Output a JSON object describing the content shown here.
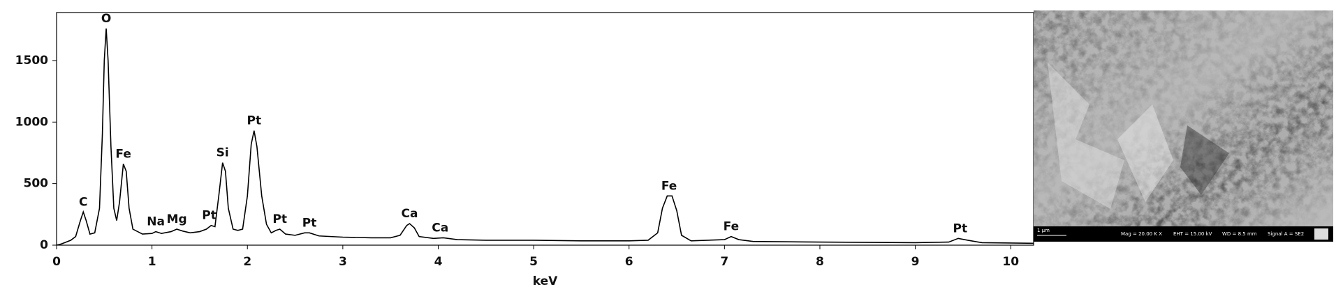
{
  "chart_data": {
    "type": "line",
    "x_label": "keV",
    "x": [
      0,
      0.05,
      0.1,
      0.15,
      0.2,
      0.25,
      0.28,
      0.31,
      0.35,
      0.4,
      0.45,
      0.48,
      0.5,
      0.52,
      0.54,
      0.57,
      0.6,
      0.63,
      0.66,
      0.7,
      0.73,
      0.76,
      0.8,
      0.9,
      1.0,
      1.04,
      1.1,
      1.2,
      1.26,
      1.32,
      1.4,
      1.5,
      1.57,
      1.62,
      1.66,
      1.7,
      1.74,
      1.77,
      1.8,
      1.85,
      1.9,
      1.95,
      2.0,
      2.04,
      2.07,
      2.1,
      2.15,
      2.2,
      2.25,
      2.3,
      2.34,
      2.4,
      2.5,
      2.6,
      2.65,
      2.75,
      3.0,
      3.3,
      3.5,
      3.6,
      3.67,
      3.7,
      3.75,
      3.8,
      3.95,
      4.05,
      4.2,
      4.5,
      5.0,
      5.5,
      6.0,
      6.2,
      6.3,
      6.35,
      6.4,
      6.45,
      6.5,
      6.55,
      6.65,
      7.0,
      7.07,
      7.15,
      7.3,
      8.0,
      9.0,
      9.35,
      9.45,
      9.55,
      9.7,
      10.24
    ],
    "y": [
      0,
      10,
      25,
      40,
      70,
      200,
      270,
      200,
      90,
      100,
      300,
      900,
      1500,
      1760,
      1500,
      800,
      300,
      200,
      350,
      660,
      600,
      300,
      130,
      90,
      95,
      110,
      95,
      110,
      130,
      115,
      100,
      110,
      130,
      160,
      150,
      400,
      670,
      600,
      300,
      130,
      120,
      130,
      400,
      820,
      930,
      800,
      400,
      170,
      100,
      120,
      130,
      90,
      80,
      100,
      100,
      75,
      65,
      60,
      60,
      80,
      160,
      175,
      140,
      70,
      55,
      60,
      45,
      40,
      40,
      35,
      35,
      40,
      100,
      300,
      400,
      400,
      280,
      80,
      35,
      45,
      70,
      45,
      30,
      25,
      20,
      25,
      55,
      40,
      20,
      15
    ],
    "color": "#000000",
    "xlim": [
      0,
      10.24
    ],
    "xticks": [
      0,
      1,
      2,
      3,
      4,
      5,
      6,
      7,
      8,
      9,
      10
    ],
    "ylim": [
      0,
      1890
    ],
    "yticks": [
      0,
      500,
      1000,
      1500
    ],
    "grid": false,
    "annotations": [
      {
        "text": "C",
        "x": 0.28,
        "y": 270
      },
      {
        "text": "O",
        "x": 0.52,
        "y": 1760
      },
      {
        "text": "Fe",
        "x": 0.7,
        "y": 660
      },
      {
        "text": "Na",
        "x": 1.04,
        "y": 110
      },
      {
        "text": "Mg",
        "x": 1.26,
        "y": 130
      },
      {
        "text": "Pt",
        "x": 1.6,
        "y": 160
      },
      {
        "text": "Si",
        "x": 1.74,
        "y": 670
      },
      {
        "text": "Pt",
        "x": 2.07,
        "y": 930
      },
      {
        "text": "Pt",
        "x": 2.34,
        "y": 130
      },
      {
        "text": "Pt",
        "x": 2.65,
        "y": 100
      },
      {
        "text": "Ca",
        "x": 3.7,
        "y": 175
      },
      {
        "text": "Ca",
        "x": 4.02,
        "y": 60
      },
      {
        "text": "Fe",
        "x": 6.42,
        "y": 400
      },
      {
        "text": "Fe",
        "x": 7.07,
        "y": 70
      },
      {
        "text": "Pt",
        "x": 9.47,
        "y": 55
      }
    ]
  },
  "sem_image": {
    "scale_bar": "1 μm",
    "info": [
      "Mag = 20.00 K X",
      "EHT = 15.00 kV",
      "WD = 8.5 mm",
      "Signal A = SE2"
    ]
  }
}
